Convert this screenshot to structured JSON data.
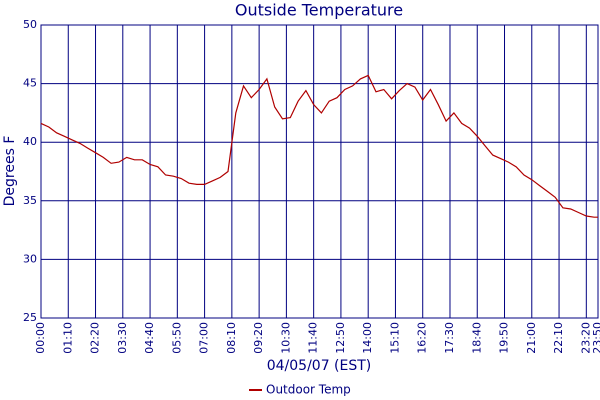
{
  "chart_data": {
    "type": "line",
    "title": "Outside Temperature",
    "x_label": "04/05/07 (EST)",
    "y_label": "Degrees F",
    "x": [
      0,
      20,
      40,
      60,
      80,
      100,
      120,
      140,
      160,
      180,
      200,
      220,
      240,
      260,
      280,
      300,
      320,
      340,
      360,
      380,
      400,
      420,
      440,
      460,
      480,
      490,
      500,
      520,
      540,
      560,
      580,
      600,
      620,
      640,
      660,
      680,
      700,
      720,
      740,
      760,
      780,
      800,
      820,
      840,
      860,
      880,
      900,
      920,
      940,
      960,
      980,
      1000,
      1020,
      1040,
      1060,
      1080,
      1100,
      1120,
      1140,
      1160,
      1180,
      1200,
      1220,
      1240,
      1260,
      1280,
      1300,
      1320,
      1340,
      1360,
      1380,
      1400,
      1420,
      1430
    ],
    "series": [
      {
        "name": "Outdoor Temp",
        "color": "#b00000",
        "values": [
          41.6,
          41.3,
          40.8,
          40.5,
          40.2,
          39.9,
          39.5,
          39.1,
          38.7,
          38.2,
          38.3,
          38.7,
          38.5,
          38.5,
          38.1,
          37.9,
          37.2,
          37.1,
          36.9,
          36.5,
          36.4,
          36.4,
          36.7,
          37.0,
          37.5,
          40.0,
          42.5,
          44.8,
          43.8,
          44.5,
          45.4,
          43.0,
          42.0,
          42.1,
          43.5,
          44.4,
          43.2,
          42.5,
          43.5,
          43.8,
          44.5,
          44.8,
          45.4,
          45.7,
          44.3,
          44.5,
          43.7,
          44.4,
          45.0,
          44.7,
          43.6,
          44.5,
          43.2,
          41.8,
          42.5,
          41.6,
          41.2,
          40.5,
          39.7,
          38.9,
          38.6,
          38.3,
          37.9,
          37.2,
          36.8,
          36.3,
          35.8,
          35.3,
          34.4,
          34.3,
          34.0,
          33.7,
          33.6,
          33.6
        ]
      }
    ],
    "xlim": [
      0,
      1430
    ],
    "xticks": [
      {
        "value": 0,
        "label": "00:00"
      },
      {
        "value": 70,
        "label": "01:10"
      },
      {
        "value": 140,
        "label": "02:20"
      },
      {
        "value": 210,
        "label": "03:30"
      },
      {
        "value": 280,
        "label": "04:40"
      },
      {
        "value": 350,
        "label": "05:50"
      },
      {
        "value": 420,
        "label": "07:00"
      },
      {
        "value": 490,
        "label": "08:10"
      },
      {
        "value": 560,
        "label": "09:20"
      },
      {
        "value": 630,
        "label": "10:30"
      },
      {
        "value": 700,
        "label": "11:40"
      },
      {
        "value": 770,
        "label": "12:50"
      },
      {
        "value": 840,
        "label": "14:00"
      },
      {
        "value": 910,
        "label": "15:10"
      },
      {
        "value": 980,
        "label": "16:20"
      },
      {
        "value": 1050,
        "label": "17:30"
      },
      {
        "value": 1120,
        "label": "18:40"
      },
      {
        "value": 1190,
        "label": "19:50"
      },
      {
        "value": 1260,
        "label": "21:00"
      },
      {
        "value": 1330,
        "label": "22:10"
      },
      {
        "value": 1400,
        "label": "23:20"
      },
      {
        "value": 1430,
        "label": "23:50"
      }
    ],
    "ylim": [
      25,
      50
    ],
    "yticks": [
      25,
      30,
      35,
      40,
      45,
      50
    ],
    "grid": true,
    "legend": "bottom"
  }
}
